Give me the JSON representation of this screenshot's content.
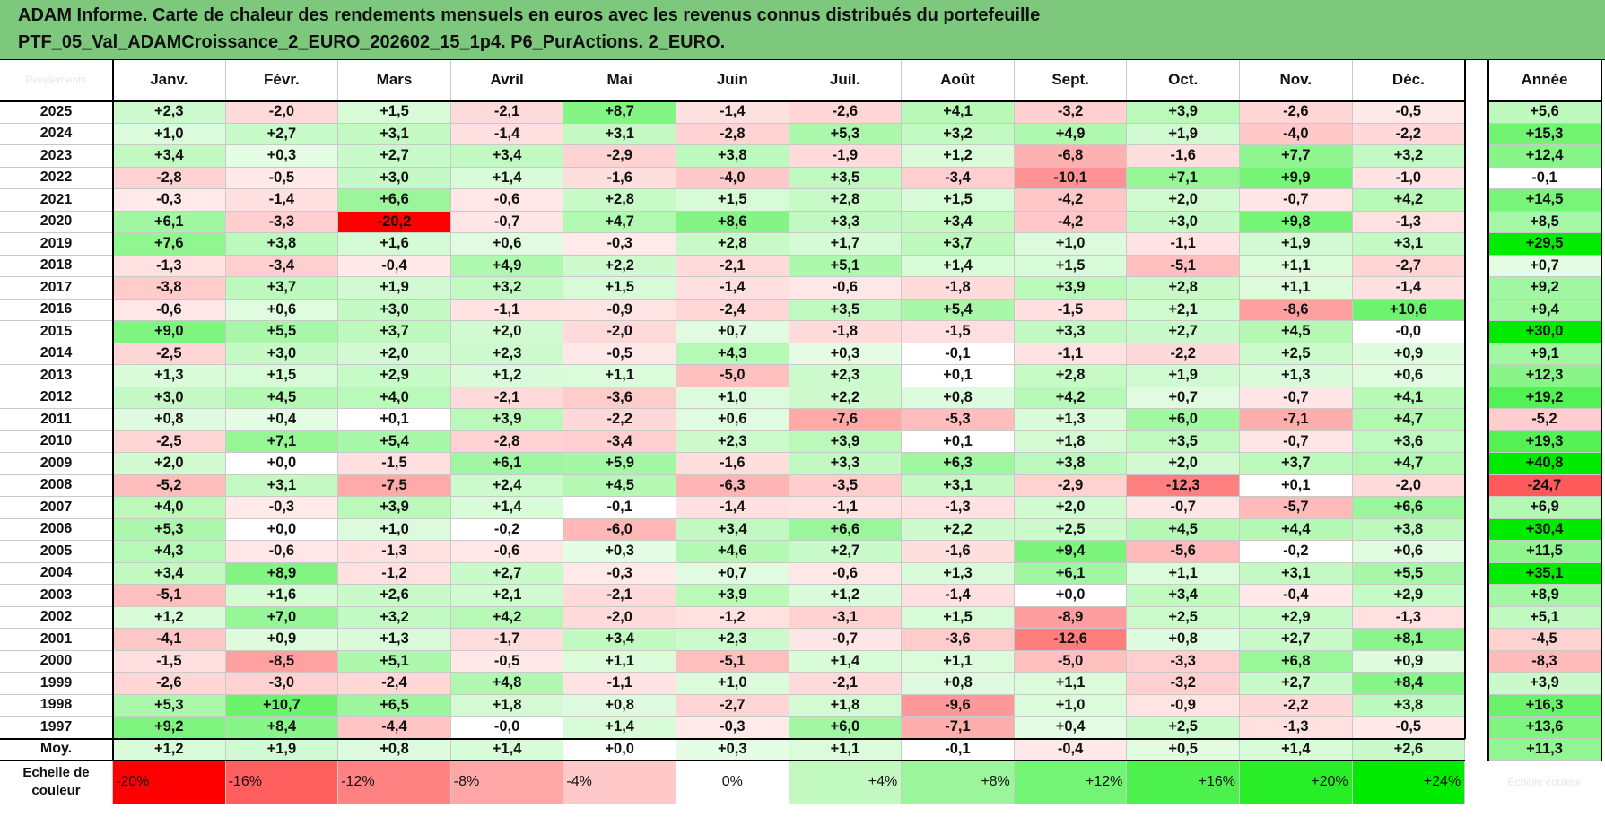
{
  "title": {
    "line1": "ADAM Informe. Carte de chaleur des rendements mensuels en euros avec les revenus connus distribués du portefeuille",
    "line2": "PTF_05_Val_ADAMCroissance_2_EURO_202602_15_1p4. P6_PurActions. 2_EURO."
  },
  "corner_label": "Rendements",
  "annee_label": "Année",
  "moy_label": "Moy.",
  "scale_label": "Echelle de couleur",
  "scale_extra": "Échelle couleur",
  "colors": {
    "header_bg": "#7ec87e",
    "neg_max": "#ff0000",
    "pos_max": "#00e600",
    "neutral": "#ffffff"
  },
  "chart_data": {
    "type": "heatmap",
    "columns": [
      "Janv.",
      "Févr.",
      "Mars",
      "Avril",
      "Mai",
      "Juin",
      "Juil.",
      "Août",
      "Sept.",
      "Oct.",
      "Nov.",
      "Déc."
    ],
    "rows": [
      {
        "year": "2025",
        "values": [
          "+2,3",
          "-2,0",
          "+1,5",
          "-2,1",
          "+8,7",
          "-1,4",
          "-2,6",
          "+4,1",
          "-3,2",
          "+3,9",
          "-2,6",
          "-0,5"
        ],
        "annual": "+5,6"
      },
      {
        "year": "2024",
        "values": [
          "+1,0",
          "+2,7",
          "+3,1",
          "-1,4",
          "+3,1",
          "-2,8",
          "+5,3",
          "+3,2",
          "+4,9",
          "+1,9",
          "-4,0",
          "-2,2"
        ],
        "annual": "+15,3"
      },
      {
        "year": "2023",
        "values": [
          "+3,4",
          "+0,3",
          "+2,7",
          "+3,4",
          "-2,9",
          "+3,8",
          "-1,9",
          "+1,2",
          "-6,8",
          "-1,6",
          "+7,7",
          "+3,2"
        ],
        "annual": "+12,4"
      },
      {
        "year": "2022",
        "values": [
          "-2,8",
          "-0,5",
          "+3,0",
          "+1,4",
          "-1,6",
          "-4,0",
          "+3,5",
          "-3,4",
          "-10,1",
          "+7,1",
          "+9,9",
          "-1,0"
        ],
        "annual": "-0,1"
      },
      {
        "year": "2021",
        "values": [
          "-0,3",
          "-1,4",
          "+6,6",
          "-0,6",
          "+2,8",
          "+1,5",
          "+2,8",
          "+1,5",
          "-4,2",
          "+2,0",
          "-0,7",
          "+4,2"
        ],
        "annual": "+14,5"
      },
      {
        "year": "2020",
        "values": [
          "+6,1",
          "-3,3",
          "-20,2",
          "-0,7",
          "+4,7",
          "+8,6",
          "+3,3",
          "+3,4",
          "-4,2",
          "+3,0",
          "+9,8",
          "-1,3"
        ],
        "annual": "+8,5"
      },
      {
        "year": "2019",
        "values": [
          "+7,6",
          "+3,8",
          "+1,6",
          "+0,6",
          "-0,3",
          "+2,8",
          "+1,7",
          "+3,7",
          "+1,0",
          "-1,1",
          "+1,9",
          "+3,1"
        ],
        "annual": "+29,5"
      },
      {
        "year": "2018",
        "values": [
          "-1,3",
          "-3,4",
          "-0,4",
          "+4,9",
          "+2,2",
          "-2,1",
          "+5,1",
          "+1,4",
          "+1,5",
          "-5,1",
          "+1,1",
          "-2,7"
        ],
        "annual": "+0,7"
      },
      {
        "year": "2017",
        "values": [
          "-3,8",
          "+3,7",
          "+1,9",
          "+3,2",
          "+1,5",
          "-1,4",
          "-0,6",
          "-1,8",
          "+3,9",
          "+2,8",
          "+1,1",
          "-1,4"
        ],
        "annual": "+9,2"
      },
      {
        "year": "2016",
        "values": [
          "-0,6",
          "+0,6",
          "+3,0",
          "-1,1",
          "-0,9",
          "-2,4",
          "+3,5",
          "+5,4",
          "-1,5",
          "+2,1",
          "-8,6",
          "+10,6"
        ],
        "annual": "+9,4"
      },
      {
        "year": "2015",
        "values": [
          "+9,0",
          "+5,5",
          "+3,7",
          "+2,0",
          "-2,0",
          "+0,7",
          "-1,8",
          "-1,5",
          "+3,3",
          "+2,7",
          "+4,5",
          "-0,0"
        ],
        "annual": "+30,0"
      },
      {
        "year": "2014",
        "values": [
          "-2,5",
          "+3,0",
          "+2,0",
          "+2,3",
          "-0,5",
          "+4,3",
          "+0,3",
          "-0,1",
          "-1,1",
          "-2,2",
          "+2,5",
          "+0,9"
        ],
        "annual": "+9,1"
      },
      {
        "year": "2013",
        "values": [
          "+1,3",
          "+1,5",
          "+2,9",
          "+1,2",
          "+1,1",
          "-5,0",
          "+2,3",
          "+0,1",
          "+2,8",
          "+1,9",
          "+1,3",
          "+0,6"
        ],
        "annual": "+12,3"
      },
      {
        "year": "2012",
        "values": [
          "+3,0",
          "+4,5",
          "+4,0",
          "-2,1",
          "-3,6",
          "+1,0",
          "+2,2",
          "+0,8",
          "+4,2",
          "+0,7",
          "-0,7",
          "+4,1"
        ],
        "annual": "+19,2"
      },
      {
        "year": "2011",
        "values": [
          "+0,8",
          "+0,4",
          "+0,1",
          "+3,9",
          "-2,2",
          "+0,6",
          "-7,6",
          "-5,3",
          "+1,3",
          "+6,0",
          "-7,1",
          "+4,7"
        ],
        "annual": "-5,2"
      },
      {
        "year": "2010",
        "values": [
          "-2,5",
          "+7,1",
          "+5,4",
          "-2,8",
          "-3,4",
          "+2,3",
          "+3,9",
          "+0,1",
          "+1,8",
          "+3,5",
          "-0,7",
          "+3,6"
        ],
        "annual": "+19,3"
      },
      {
        "year": "2009",
        "values": [
          "+2,0",
          "+0,0",
          "-1,5",
          "+6,1",
          "+5,9",
          "-1,6",
          "+3,3",
          "+6,3",
          "+3,8",
          "+2,0",
          "+3,7",
          "+4,7"
        ],
        "annual": "+40,8"
      },
      {
        "year": "2008",
        "values": [
          "-5,2",
          "+3,1",
          "-7,5",
          "+2,4",
          "+4,5",
          "-6,3",
          "-3,5",
          "+3,1",
          "-2,9",
          "-12,3",
          "+0,1",
          "-2,0"
        ],
        "annual": "-24,7"
      },
      {
        "year": "2007",
        "values": [
          "+4,0",
          "-0,3",
          "+3,9",
          "+1,4",
          "-0,1",
          "-1,4",
          "-1,1",
          "-1,3",
          "+2,0",
          "-0,7",
          "-5,7",
          "+6,6"
        ],
        "annual": "+6,9"
      },
      {
        "year": "2006",
        "values": [
          "+5,3",
          "+0,0",
          "+1,0",
          "-0,2",
          "-6,0",
          "+3,4",
          "+6,6",
          "+2,2",
          "+2,5",
          "+4,5",
          "+4,4",
          "+3,8"
        ],
        "annual": "+30,4"
      },
      {
        "year": "2005",
        "values": [
          "+4,3",
          "-0,6",
          "-1,3",
          "-0,6",
          "+0,3",
          "+4,6",
          "+2,7",
          "-1,6",
          "+9,4",
          "-5,6",
          "-0,2",
          "+0,6"
        ],
        "annual": "+11,5"
      },
      {
        "year": "2004",
        "values": [
          "+3,4",
          "+8,9",
          "-1,2",
          "+2,7",
          "-0,3",
          "+0,7",
          "-0,6",
          "+1,3",
          "+6,1",
          "+1,1",
          "+3,1",
          "+5,5"
        ],
        "annual": "+35,1"
      },
      {
        "year": "2003",
        "values": [
          "-5,1",
          "+1,6",
          "+2,6",
          "+2,1",
          "-2,1",
          "+3,9",
          "+1,2",
          "-1,4",
          "+0,0",
          "+3,4",
          "-0,4",
          "+2,9"
        ],
        "annual": "+8,9"
      },
      {
        "year": "2002",
        "values": [
          "+1,2",
          "+7,0",
          "+3,2",
          "+4,2",
          "-2,0",
          "-1,2",
          "-3,1",
          "+1,5",
          "-8,9",
          "+2,5",
          "+2,9",
          "-1,3"
        ],
        "annual": "+5,1"
      },
      {
        "year": "2001",
        "values": [
          "-4,1",
          "+0,9",
          "+1,3",
          "-1,7",
          "+3,4",
          "+2,3",
          "-0,7",
          "-3,6",
          "-12,6",
          "+0,8",
          "+2,7",
          "+8,1"
        ],
        "annual": "-4,5"
      },
      {
        "year": "2000",
        "values": [
          "-1,5",
          "-8,5",
          "+5,1",
          "-0,5",
          "+1,1",
          "-5,1",
          "+1,4",
          "+1,1",
          "-5,0",
          "-3,3",
          "+6,8",
          "+0,9"
        ],
        "annual": "-8,3"
      },
      {
        "year": "1999",
        "values": [
          "-2,6",
          "-3,0",
          "-2,4",
          "+4,8",
          "-1,1",
          "+1,0",
          "-2,1",
          "+0,8",
          "+1,1",
          "-3,2",
          "+2,7",
          "+8,4"
        ],
        "annual": "+3,9"
      },
      {
        "year": "1998",
        "values": [
          "+5,3",
          "+10,7",
          "+6,5",
          "+1,8",
          "+0,8",
          "-2,7",
          "+1,8",
          "-9,6",
          "+1,0",
          "-0,9",
          "-2,2",
          "+3,8"
        ],
        "annual": "+16,3"
      },
      {
        "year": "1997",
        "values": [
          "+9,2",
          "+8,4",
          "-4,4",
          "-0,0",
          "+1,4",
          "-0,3",
          "+6,0",
          "-7,1",
          "+0,4",
          "+2,5",
          "-1,3",
          "-0,5"
        ],
        "annual": "+13,6"
      }
    ],
    "average": {
      "values": [
        "+1,2",
        "+1,9",
        "+0,8",
        "+1,4",
        "+0,0",
        "+0,3",
        "+1,1",
        "-0,1",
        "-0,4",
        "+0,5",
        "+1,4",
        "+2,6"
      ],
      "annual": "+11,3"
    },
    "scale": [
      "-20%",
      "-16%",
      "-12%",
      "-8%",
      "-4%",
      "0%",
      "+4%",
      "+8%",
      "+12%",
      "+16%",
      "+20%",
      "+24%"
    ],
    "color_range": {
      "min": -20,
      "max": 24
    }
  }
}
